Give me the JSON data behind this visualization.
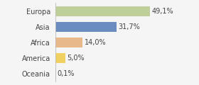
{
  "categories": [
    "Europa",
    "Asia",
    "Africa",
    "America",
    "Oceania"
  ],
  "values": [
    49.1,
    31.7,
    14.0,
    5.0,
    0.1
  ],
  "labels": [
    "49,1%",
    "31,7%",
    "14,0%",
    "5,0%",
    "0,1%"
  ],
  "bar_colors": [
    "#bfcf9a",
    "#6b8cbf",
    "#e8b88a",
    "#f0d060",
    "#d0d0d0"
  ],
  "background_color": "#f5f5f5",
  "xlim": [
    0,
    62
  ],
  "bar_height": 0.62,
  "label_fontsize": 7.0,
  "tick_fontsize": 7.0
}
